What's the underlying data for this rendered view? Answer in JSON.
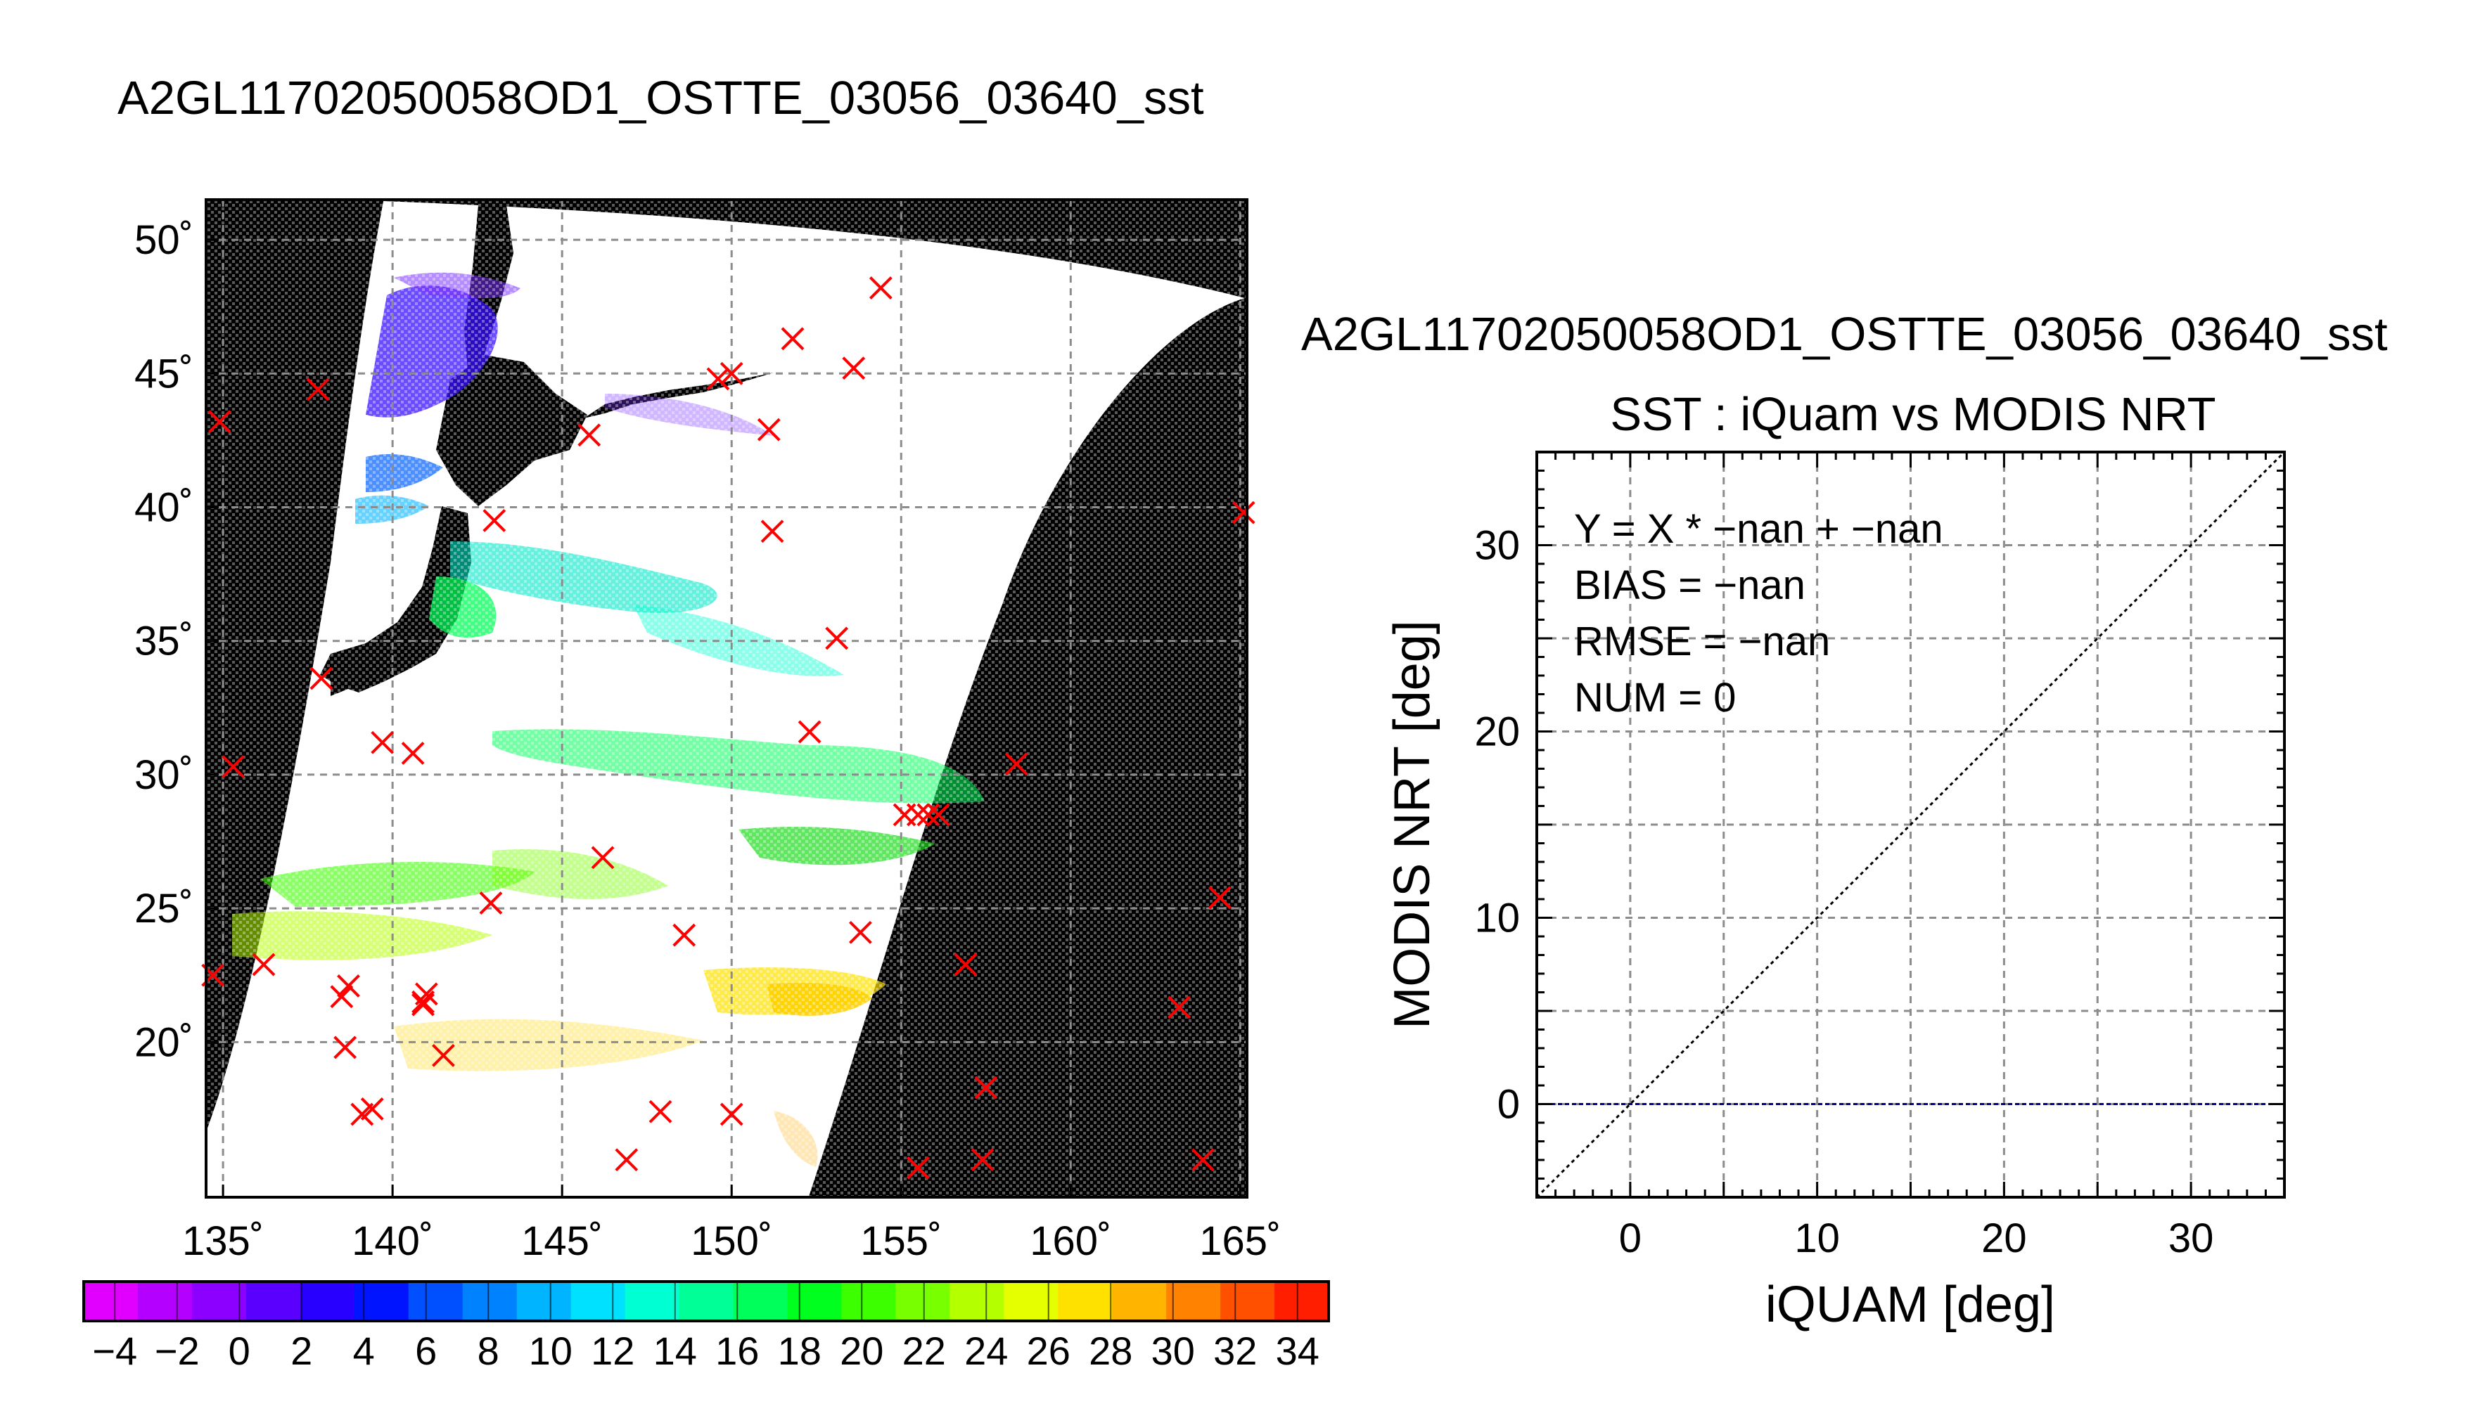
{
  "map_panel": {
    "title": "A2GL11702050058OD1_OSTTE_03056_03640_sst"
  },
  "scatter_panel": {
    "product_title": "A2GL11702050058OD1_OSTTE_03056_03640_sst",
    "title": "SST : iQuam vs MODIS NRT",
    "stats": [
      "Y = X * −nan + −nan",
      "BIAS = −nan",
      "RMSE = −nan",
      "NUM = 0"
    ]
  },
  "colors": {
    "frame": "#000000",
    "swath_background": "#ffffff",
    "marker": "#ff0000",
    "fit_line": "#00008b",
    "grid": "#8c8c8c"
  },
  "chart_data": [
    {
      "type": "heatmap",
      "description_kind": "sst-swath-map",
      "xlabel": "",
      "ylabel": "",
      "xlim": [
        134.5,
        165.2
      ],
      "ylim": [
        14.2,
        51.5
      ],
      "x_ticks": [
        135,
        140,
        145,
        150,
        155,
        160,
        165
      ],
      "x_tick_labels": [
        "135˚",
        "140˚",
        "145˚",
        "150˚",
        "155˚",
        "160˚",
        "165˚"
      ],
      "y_ticks": [
        20,
        25,
        30,
        35,
        40,
        45,
        50
      ],
      "y_tick_labels": [
        "20˚",
        "25˚",
        "30˚",
        "35˚",
        "40˚",
        "45˚",
        "50˚"
      ],
      "grid": true,
      "colorbar": {
        "min": -5,
        "max": 35,
        "tick_values": [
          -4,
          -2,
          0,
          2,
          4,
          6,
          8,
          10,
          12,
          14,
          16,
          18,
          20,
          22,
          24,
          26,
          28,
          30,
          32,
          34
        ],
        "tick_labels": [
          "−4",
          "−2",
          "0",
          "2",
          "4",
          "6",
          "8",
          "10",
          "12",
          "14",
          "16",
          "18",
          "20",
          "22",
          "24",
          "26",
          "28",
          "30",
          "32",
          "34"
        ],
        "colors": [
          "#e100ff",
          "#b400ff",
          "#8c00ff",
          "#5a00ff",
          "#2800ff",
          "#0014ff",
          "#0050ff",
          "#0082ff",
          "#00b4ff",
          "#00e1ff",
          "#00ffd2",
          "#00ff96",
          "#00ff5a",
          "#00ff1e",
          "#3cff00",
          "#78ff00",
          "#b4ff00",
          "#e6ff00",
          "#ffe100",
          "#ffb400",
          "#ff8200",
          "#ff5000",
          "#ff1e00"
        ]
      },
      "markers": [
        {
          "lon": 134.9,
          "lat": 43.2
        },
        {
          "lon": 135.3,
          "lat": 30.3
        },
        {
          "lon": 134.7,
          "lat": 22.5
        },
        {
          "lon": 136.2,
          "lat": 22.9
        },
        {
          "lon": 137.8,
          "lat": 44.4
        },
        {
          "lon": 137.9,
          "lat": 33.6
        },
        {
          "lon": 138.5,
          "lat": 21.7
        },
        {
          "lon": 138.7,
          "lat": 22.1
        },
        {
          "lon": 138.6,
          "lat": 19.8
        },
        {
          "lon": 139.1,
          "lat": 17.3
        },
        {
          "lon": 139.4,
          "lat": 17.5
        },
        {
          "lon": 139.7,
          "lat": 31.2
        },
        {
          "lon": 140.6,
          "lat": 30.8
        },
        {
          "lon": 140.9,
          "lat": 21.5
        },
        {
          "lon": 141.0,
          "lat": 21.8
        },
        {
          "lon": 140.9,
          "lat": 21.4
        },
        {
          "lon": 141.5,
          "lat": 19.5
        },
        {
          "lon": 142.9,
          "lat": 25.2
        },
        {
          "lon": 143.0,
          "lat": 39.5
        },
        {
          "lon": 145.8,
          "lat": 42.7
        },
        {
          "lon": 146.2,
          "lat": 26.9
        },
        {
          "lon": 146.9,
          "lat": 15.6
        },
        {
          "lon": 147.9,
          "lat": 17.4
        },
        {
          "lon": 148.6,
          "lat": 24.0
        },
        {
          "lon": 149.6,
          "lat": 44.8
        },
        {
          "lon": 150.0,
          "lat": 45.0
        },
        {
          "lon": 150.0,
          "lat": 17.3
        },
        {
          "lon": 151.1,
          "lat": 42.9
        },
        {
          "lon": 151.2,
          "lat": 39.1
        },
        {
          "lon": 151.8,
          "lat": 46.3
        },
        {
          "lon": 152.3,
          "lat": 31.6
        },
        {
          "lon": 153.1,
          "lat": 35.1
        },
        {
          "lon": 153.6,
          "lat": 45.2
        },
        {
          "lon": 153.8,
          "lat": 24.1
        },
        {
          "lon": 154.4,
          "lat": 48.2
        },
        {
          "lon": 155.1,
          "lat": 28.5
        },
        {
          "lon": 155.5,
          "lat": 28.5
        },
        {
          "lon": 155.8,
          "lat": 28.5
        },
        {
          "lon": 156.1,
          "lat": 28.5
        },
        {
          "lon": 155.5,
          "lat": 15.3
        },
        {
          "lon": 156.9,
          "lat": 22.9
        },
        {
          "lon": 157.4,
          "lat": 15.6
        },
        {
          "lon": 157.5,
          "lat": 18.3
        },
        {
          "lon": 158.4,
          "lat": 30.4
        },
        {
          "lon": 163.2,
          "lat": 21.3
        },
        {
          "lon": 163.9,
          "lat": 15.6
        },
        {
          "lon": 164.4,
          "lat": 25.4
        },
        {
          "lon": 165.1,
          "lat": 39.8
        }
      ]
    },
    {
      "type": "scatter",
      "title": "SST : iQuam vs MODIS NRT",
      "xlabel": "iQUAM [deg]",
      "ylabel": "MODIS NRT [deg]",
      "xlim": [
        -5,
        35
      ],
      "ylim": [
        -5,
        35
      ],
      "x_ticks": [
        0,
        10,
        20,
        30
      ],
      "y_ticks": [
        0,
        10,
        20,
        30
      ],
      "minor_step": 5,
      "grid": true,
      "points": [],
      "reference_line": {
        "slope": 1,
        "intercept": 0
      },
      "fit_line_y": 0
    }
  ]
}
